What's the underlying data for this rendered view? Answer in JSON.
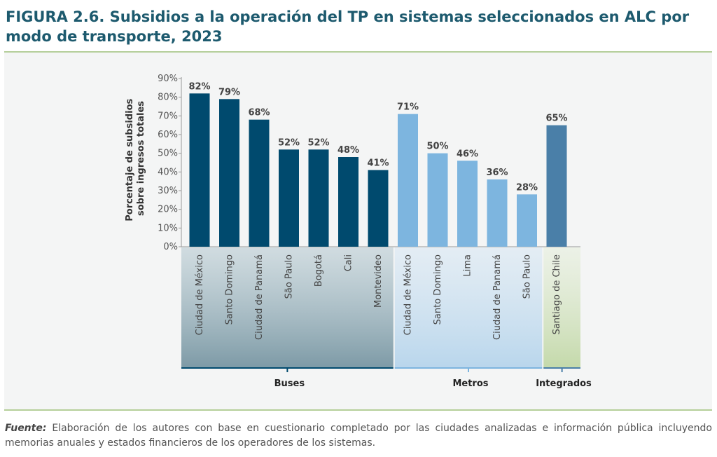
{
  "header": {
    "title": "FIGURA 2.6. Subsidios a la operación del TP en sistemas seleccionados en ALC por modo de transporte, 2023"
  },
  "footer": {
    "source_label": "Fuente:",
    "source_text": " Elaboración de los autores con base en cuestionario completado por las ciudades analizadas e información pública incluyendo memorias anuales y estados financieros de los operadores de los sistemas."
  },
  "chart_data": {
    "type": "bar",
    "title": "FIGURA 2.6. Subsidios a la operación del TP en sistemas seleccionados en ALC por modo de transporte, 2023",
    "ylabel": [
      "Porcentaje de subsidios",
      "sobre ingresos totales"
    ],
    "ylim": [
      0,
      90
    ],
    "yticks": [
      "0%",
      "10%",
      "20%",
      "30%",
      "40%",
      "50%",
      "60%",
      "70%",
      "80%",
      "90%"
    ],
    "grid": false,
    "groups": [
      {
        "name": "Buses",
        "color": "#004a6e",
        "band_top": "#b3c7cf",
        "band_bottom": "#7d9aa6",
        "categories": [
          "Ciudad de México",
          "Santo Domingo",
          "Ciudad de Panamá",
          "São Paulo",
          "Bogotá",
          "Cali",
          "Montevideo"
        ],
        "values": [
          82,
          79,
          68,
          52,
          52,
          48,
          41
        ],
        "labels": [
          "82%",
          "79%",
          "68%",
          "52%",
          "52%",
          "48%",
          "41%"
        ]
      },
      {
        "name": "Metros",
        "color": "#7db5df",
        "band_top": "#d6e6f3",
        "band_bottom": "#b9d6ec",
        "categories": [
          "Ciudad de México",
          "Santo Domingo",
          "Lima",
          "Ciudad de Panamá",
          "São Paulo"
        ],
        "values": [
          71,
          50,
          46,
          36,
          28
        ],
        "labels": [
          "71%",
          "50%",
          "46%",
          "36%",
          "28%"
        ]
      },
      {
        "name": "Integrados",
        "color": "#4a7fa8",
        "band_top": "#e5eedb",
        "band_bottom": "#c4d9aa",
        "categories": [
          "Santiago de Chile"
        ],
        "values": [
          65
        ],
        "labels": [
          "65%"
        ]
      }
    ]
  }
}
